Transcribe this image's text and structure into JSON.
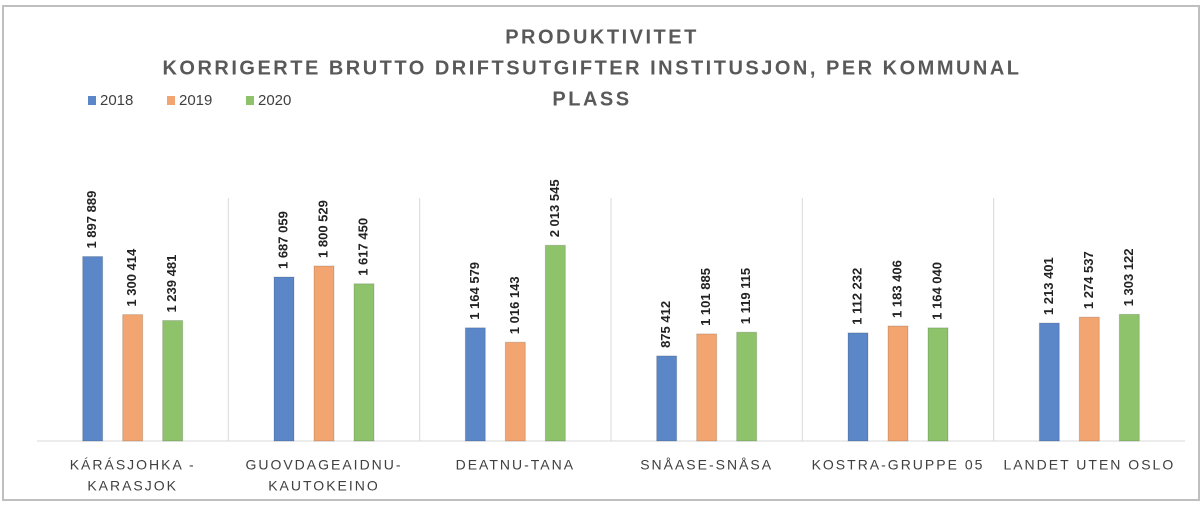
{
  "chart_data": {
    "type": "bar",
    "title": "PRODUKTIVITET",
    "subtitle": [
      "KORRIGERTE BRUTTO DRIFTSUTGIFTER INSTITUSJON, PER KOMMUNAL",
      "PLASS"
    ],
    "categories": [
      [
        "KÁRÁSJOHKA -",
        "KARASJOK"
      ],
      [
        "GUOVDAGEAIDNU-",
        "KAUTOKEINO"
      ],
      [
        "DEATNU-TANA"
      ],
      [
        "SNÅASE-SNÅSA"
      ],
      [
        "KOSTRA-GRUPPE 05"
      ],
      [
        "LANDET UTEN OSLO"
      ]
    ],
    "series": [
      {
        "name": "2018",
        "color": "#5b86c8",
        "values": [
          1897889,
          1687059,
          1164579,
          875412,
          1112232,
          1213401
        ],
        "value_labels": [
          "1 897 889",
          "1 687 059",
          "1 164 579",
          "875 412",
          "1 112 232",
          "1 213 401"
        ]
      },
      {
        "name": "2019",
        "color": "#f2a570",
        "values": [
          1300414,
          1800529,
          1016143,
          1101885,
          1183406,
          1274537
        ],
        "value_labels": [
          "1 300 414",
          "1 800 529",
          "1 016 143",
          "1 101 885",
          "1 183 406",
          "1 274 537"
        ]
      },
      {
        "name": "2020",
        "color": "#8ec36c",
        "values": [
          1239481,
          1617450,
          2013545,
          1119115,
          1164040,
          1303122
        ],
        "value_labels": [
          "1 239 481",
          "1 617 450",
          "2 013 545",
          "1 119 115",
          "1 164 040",
          "1 303 122"
        ]
      }
    ],
    "ylim": [
      0,
      2500000
    ],
    "legend": "top-left"
  }
}
